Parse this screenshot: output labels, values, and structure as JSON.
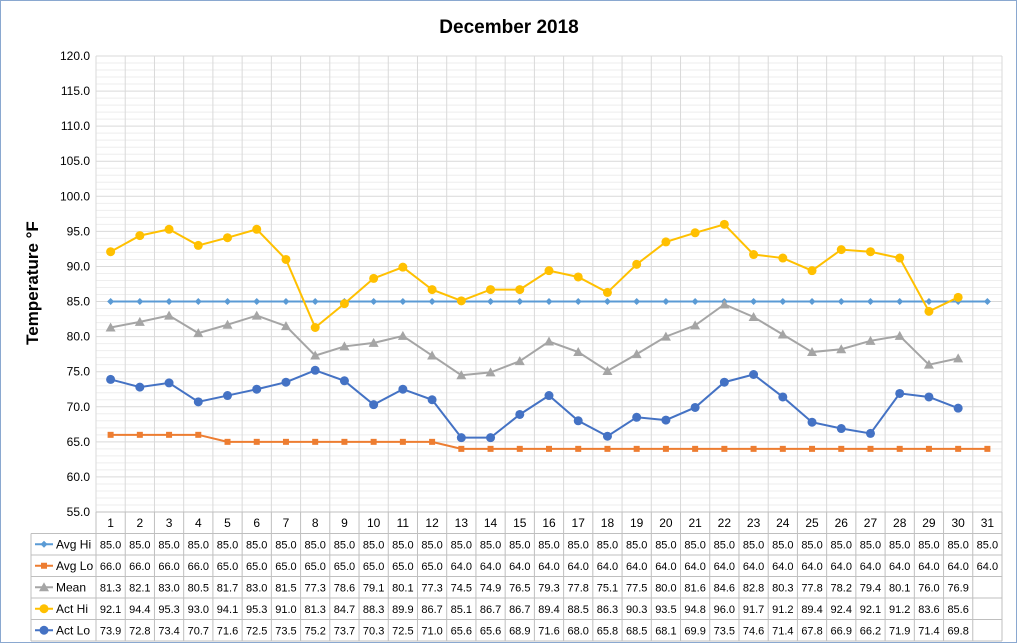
{
  "chart_data": {
    "type": "line",
    "title": "December 2018",
    "ylabel": "Temperature °F",
    "xlabel": "",
    "ylim": [
      55,
      120
    ],
    "ytick_step": 5,
    "grid": true,
    "legend": "data-table",
    "categories": [
      "1",
      "2",
      "3",
      "4",
      "5",
      "6",
      "7",
      "8",
      "9",
      "10",
      "11",
      "12",
      "13",
      "14",
      "15",
      "16",
      "17",
      "18",
      "19",
      "20",
      "21",
      "22",
      "23",
      "24",
      "25",
      "26",
      "27",
      "28",
      "29",
      "30",
      "31"
    ],
    "series": [
      {
        "name": "Avg Hi",
        "color": "#5b9bd5",
        "marker": "diamond",
        "values": [
          85.0,
          85.0,
          85.0,
          85.0,
          85.0,
          85.0,
          85.0,
          85.0,
          85.0,
          85.0,
          85.0,
          85.0,
          85.0,
          85.0,
          85.0,
          85.0,
          85.0,
          85.0,
          85.0,
          85.0,
          85.0,
          85.0,
          85.0,
          85.0,
          85.0,
          85.0,
          85.0,
          85.0,
          85.0,
          85.0,
          85.0
        ]
      },
      {
        "name": "Avg Lo",
        "color": "#ed7d31",
        "marker": "square",
        "values": [
          66.0,
          66.0,
          66.0,
          66.0,
          65.0,
          65.0,
          65.0,
          65.0,
          65.0,
          65.0,
          65.0,
          65.0,
          64.0,
          64.0,
          64.0,
          64.0,
          64.0,
          64.0,
          64.0,
          64.0,
          64.0,
          64.0,
          64.0,
          64.0,
          64.0,
          64.0,
          64.0,
          64.0,
          64.0,
          64.0,
          64.0
        ]
      },
      {
        "name": "Mean",
        "color": "#a5a5a5",
        "marker": "triangle",
        "values": [
          81.3,
          82.1,
          83.0,
          80.5,
          81.7,
          83.0,
          81.5,
          77.3,
          78.6,
          79.1,
          80.1,
          77.3,
          74.5,
          74.9,
          76.5,
          79.3,
          77.8,
          75.1,
          77.5,
          80.0,
          81.6,
          84.6,
          82.8,
          80.3,
          77.8,
          78.2,
          79.4,
          80.1,
          76.0,
          76.9,
          null
        ]
      },
      {
        "name": "Act Hi",
        "color": "#ffc000",
        "marker": "circle",
        "values": [
          92.1,
          94.4,
          95.3,
          93.0,
          94.1,
          95.3,
          91.0,
          81.3,
          84.7,
          88.3,
          89.9,
          86.7,
          85.1,
          86.7,
          86.7,
          89.4,
          88.5,
          86.3,
          90.3,
          93.5,
          94.8,
          96.0,
          91.7,
          91.2,
          89.4,
          92.4,
          92.1,
          91.2,
          83.6,
          85.6,
          null
        ]
      },
      {
        "name": "Act Lo",
        "color": "#4472c4",
        "marker": "circle",
        "values": [
          73.9,
          72.8,
          73.4,
          70.7,
          71.6,
          72.5,
          73.5,
          75.2,
          73.7,
          70.3,
          72.5,
          71.0,
          65.6,
          65.6,
          68.9,
          71.6,
          68.0,
          65.8,
          68.5,
          68.1,
          69.9,
          73.5,
          74.6,
          71.4,
          67.8,
          66.9,
          66.2,
          71.9,
          71.4,
          69.8,
          null
        ]
      }
    ]
  }
}
